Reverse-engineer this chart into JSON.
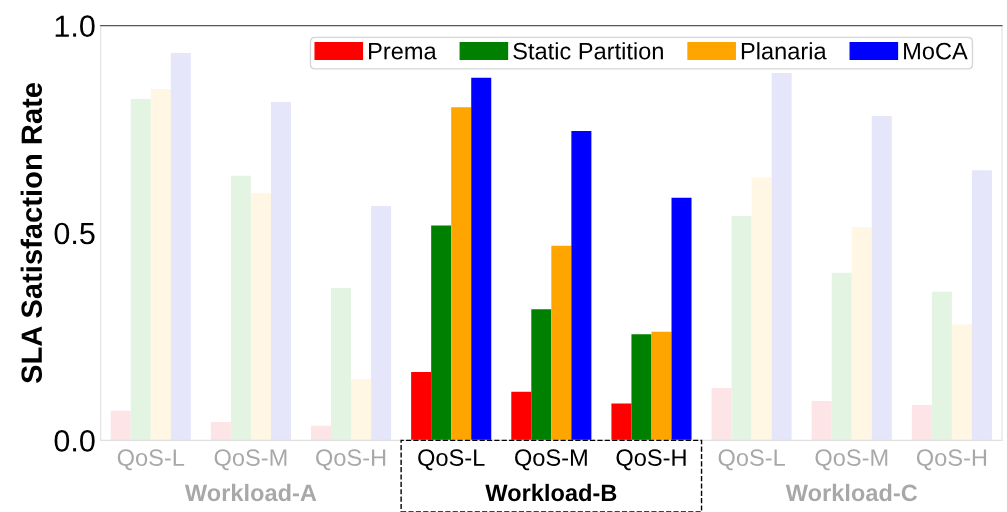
{
  "chart_data": {
    "type": "bar",
    "ylabel": "SLA Satisfaction Rate",
    "categories": [
      "QoS-L",
      "QoS-M",
      "QoS-H",
      "QoS-L",
      "QoS-M",
      "QoS-H",
      "QoS-L",
      "QoS-M",
      "QoS-H"
    ],
    "annotations": [
      "Workload-A",
      "Workload-B",
      "Workload-C"
    ],
    "series": [
      {
        "name": "Prema",
        "color": "#ff0000",
        "colors": [
          "#fde4e6",
          "#fde4e6",
          "#fde4e6",
          "#ff0000",
          "#ff0000",
          "#ff0000",
          "#fde4e6",
          "#fde4e6",
          "#fde4e6"
        ],
        "values": [
          0.071,
          0.044,
          0.035,
          0.165,
          0.117,
          0.089,
          0.126,
          0.095,
          0.085
        ]
      },
      {
        "name": "Static Partition",
        "color": "#008000",
        "colors": [
          "#e3f4e3",
          "#e3f4e3",
          "#e3f4e3",
          "#008000",
          "#008000",
          "#008000",
          "#e3f4e3",
          "#e3f4e3",
          "#e3f4e3"
        ],
        "values": [
          0.823,
          0.638,
          0.367,
          0.518,
          0.316,
          0.256,
          0.541,
          0.404,
          0.358
        ]
      },
      {
        "name": "Planaria",
        "color": "#ffa500",
        "colors": [
          "#fff6e3",
          "#fff6e3",
          "#fff6e3",
          "#ffa500",
          "#ffa500",
          "#ffa500",
          "#fff6e3",
          "#fff6e3",
          "#fff6e3"
        ],
        "values": [
          0.847,
          0.596,
          0.147,
          0.803,
          0.469,
          0.262,
          0.634,
          0.514,
          0.279
        ]
      },
      {
        "name": "MoCA",
        "color": "#0000ff",
        "colors": [
          "#e6e6fb",
          "#e6e6fb",
          "#e6e6fb",
          "#0000ff",
          "#0000ff",
          "#0000ff",
          "#e6e6fb",
          "#e6e6fb",
          "#e6e6fb"
        ],
        "values": [
          0.934,
          0.816,
          0.565,
          0.874,
          0.746,
          0.585,
          0.886,
          0.782,
          0.651
        ]
      }
    ],
    "ylim": [
      0,
      1.0
    ],
    "yticks": [
      {
        "value": 0,
        "label": "0.0"
      },
      {
        "value": 0.5,
        "label": "0.5"
      },
      {
        "value": 1.0,
        "label": "1.0"
      }
    ],
    "grid": false,
    "legend": "top"
  }
}
